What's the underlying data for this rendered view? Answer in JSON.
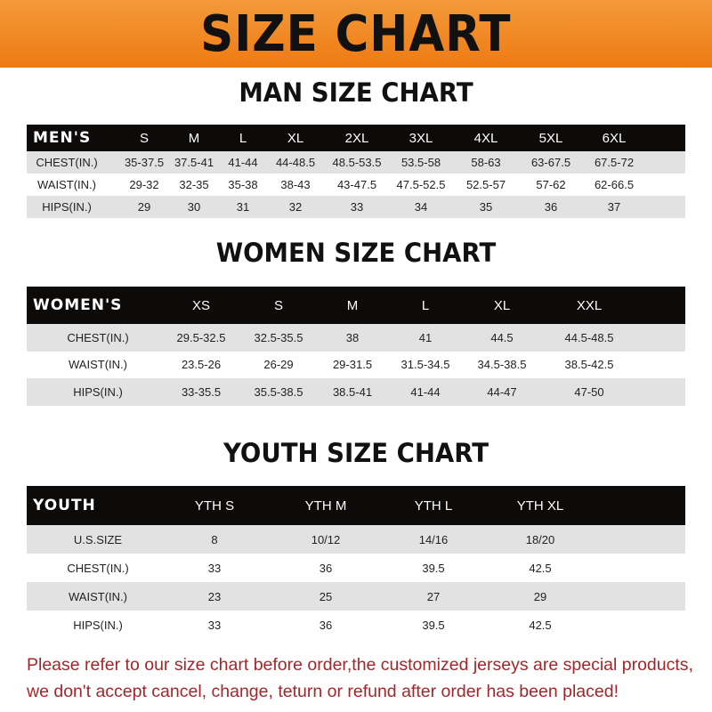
{
  "title": "SIZE CHART",
  "men": {
    "heading": "MAN SIZE CHART",
    "header": [
      "MEN'S",
      "S",
      "M",
      "L",
      "XL",
      "2XL",
      "3XL",
      "4XL",
      "5XL",
      "6XL"
    ],
    "rows": [
      [
        "CHEST(IN.)",
        "35-37.5",
        "37.5-41",
        "41-44",
        "44-48.5",
        "48.5-53.5",
        "53.5-58",
        "58-63",
        "63-67.5",
        "67.5-72"
      ],
      [
        "WAIST(IN.)",
        "29-32",
        "32-35",
        "35-38",
        "38-43",
        "43-47.5",
        "47.5-52.5",
        "52.5-57",
        "57-62",
        "62-66.5"
      ],
      [
        "HIPS(IN.)",
        "29",
        "30",
        "31",
        "32",
        "33",
        "34",
        "35",
        "36",
        "37"
      ]
    ]
  },
  "women": {
    "heading": "WOMEN SIZE CHART",
    "header": [
      "WOMEN'S",
      "XS",
      "S",
      "M",
      "L",
      "XL",
      "XXL"
    ],
    "rows": [
      [
        "CHEST(IN.)",
        "29.5-32.5",
        "32.5-35.5",
        "38",
        "41",
        "44.5",
        "44.5-48.5"
      ],
      [
        "WAIST(IN.)",
        "23.5-26",
        "26-29",
        "29-31.5",
        "31.5-34.5",
        "34.5-38.5",
        "38.5-42.5"
      ],
      [
        "HIPS(IN.)",
        "33-35.5",
        "35.5-38.5",
        "38.5-41",
        "41-44",
        "44-47",
        "47-50"
      ]
    ]
  },
  "youth": {
    "heading": "YOUTH SIZE CHART",
    "header": [
      "YOUTH",
      "YTH S",
      "YTH M",
      "YTH L",
      "YTH XL"
    ],
    "rows": [
      [
        "U.S.SIZE",
        "8",
        "10/12",
        "14/16",
        "18/20"
      ],
      [
        "CHEST(IN.)",
        "33",
        "36",
        "39.5",
        "42.5"
      ],
      [
        "WAIST(IN.)",
        "23",
        "25",
        "27",
        "29"
      ],
      [
        "HIPS(IN.)",
        "33",
        "36",
        "39.5",
        "42.5"
      ]
    ]
  },
  "notice": [
    "Please refer to our size chart before order,the customized jerseys are special products,",
    "we don't accept cancel, change, teturn or refund after order has been placed!"
  ]
}
